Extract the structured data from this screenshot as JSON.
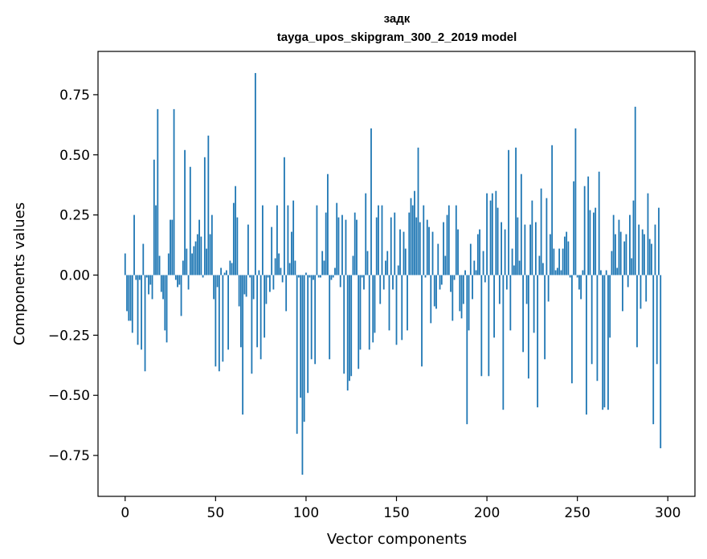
{
  "chart_data": {
    "type": "bar",
    "title": "задк",
    "subtitle": "tayga_upos_skipgram_300_2_2019 model",
    "xlabel": "Vector components",
    "ylabel": "Components values",
    "xlim": [
      -15,
      315
    ],
    "ylim": [
      -0.92,
      0.93
    ],
    "xticks": [
      0,
      50,
      100,
      150,
      200,
      250,
      300
    ],
    "xtick_labels": [
      "0",
      "50",
      "100",
      "150",
      "200",
      "250",
      "300"
    ],
    "yticks": [
      -0.75,
      -0.5,
      -0.25,
      0.0,
      0.25,
      0.5,
      0.75
    ],
    "ytick_labels": [
      "−0.75",
      "−0.50",
      "−0.25",
      "0.00",
      "0.25",
      "0.50",
      "0.75"
    ],
    "bar_color": "#1f77b4",
    "grid": false,
    "x_start": 0,
    "values": [
      0.09,
      -0.15,
      -0.19,
      -0.19,
      -0.24,
      0.25,
      -0.02,
      -0.29,
      -0.02,
      -0.31,
      0.13,
      -0.4,
      -0.01,
      -0.08,
      -0.04,
      -0.1,
      0.48,
      0.29,
      0.69,
      0.08,
      -0.07,
      -0.1,
      -0.23,
      -0.28,
      0.09,
      0.23,
      0.23,
      0.69,
      -0.02,
      -0.05,
      -0.04,
      -0.17,
      0.06,
      0.52,
      0.11,
      -0.06,
      0.45,
      0.09,
      0.12,
      0.14,
      0.17,
      0.23,
      0.16,
      -0.01,
      0.49,
      0.11,
      0.58,
      0.17,
      0.25,
      -0.1,
      -0.38,
      -0.05,
      -0.4,
      0.03,
      -0.36,
      0.01,
      0.02,
      -0.31,
      0.06,
      0.05,
      0.3,
      0.37,
      0.24,
      -0.13,
      -0.3,
      -0.58,
      -0.08,
      -0.09,
      0.21,
      -0.01,
      -0.41,
      -0.1,
      0.84,
      -0.3,
      0.02,
      -0.35,
      0.29,
      -0.26,
      -0.12,
      -0.01,
      -0.07,
      0.2,
      -0.06,
      0.07,
      0.29,
      0.09,
      0.03,
      -0.03,
      0.49,
      -0.15,
      0.29,
      0.05,
      0.18,
      0.31,
      0.06,
      -0.66,
      -0.01,
      -0.51,
      -0.83,
      -0.61,
      0.01,
      -0.49,
      -0.01,
      -0.35,
      -0.02,
      -0.37,
      0.29,
      -0.01,
      -0.01,
      0.1,
      0.06,
      0.26,
      0.42,
      -0.35,
      -0.02,
      -0.01,
      0.03,
      0.3,
      0.24,
      -0.05,
      0.25,
      -0.41,
      0.23,
      -0.48,
      -0.44,
      -0.42,
      0.08,
      0.26,
      0.23,
      -0.39,
      -0.31,
      -0.01,
      -0.06,
      0.34,
      0.1,
      -0.31,
      0.61,
      -0.28,
      -0.24,
      0.24,
      0.29,
      -0.12,
      0.29,
      -0.06,
      0.06,
      0.1,
      -0.23,
      0.24,
      -0.06,
      0.26,
      -0.29,
      0.04,
      0.19,
      -0.27,
      0.18,
      0.11,
      -0.23,
      0.26,
      0.32,
      0.29,
      0.35,
      0.24,
      0.53,
      0.22,
      -0.38,
      0.29,
      -0.01,
      0.23,
      0.2,
      -0.2,
      0.18,
      -0.13,
      -0.14,
      0.13,
      -0.06,
      -0.04,
      0.22,
      0.08,
      0.25,
      0.29,
      -0.07,
      -0.19,
      -0.02,
      0.29,
      0.19,
      -0.15,
      -0.18,
      -0.12,
      0.02,
      -0.62,
      -0.23,
      0.13,
      -0.1,
      0.06,
      0.02,
      0.17,
      0.19,
      -0.42,
      0.1,
      -0.03,
      0.34,
      -0.42,
      0.31,
      0.34,
      -0.26,
      0.35,
      0.28,
      -0.12,
      0.22,
      -0.56,
      0.19,
      -0.06,
      0.52,
      -0.23,
      0.11,
      0.04,
      0.53,
      0.24,
      0.06,
      0.42,
      -0.32,
      0.21,
      -0.12,
      -0.43,
      0.21,
      0.31,
      -0.24,
      0.22,
      -0.55,
      0.08,
      0.36,
      0.05,
      -0.35,
      0.32,
      -0.11,
      0.17,
      0.54,
      0.11,
      0.02,
      0.03,
      0.11,
      0.02,
      0.11,
      0.16,
      0.18,
      0.14,
      -0.01,
      -0.45,
      0.39,
      0.61,
      -0.01,
      -0.06,
      -0.1,
      0.02,
      0.37,
      -0.58,
      0.41,
      0.27,
      -0.37,
      0.26,
      0.28,
      -0.44,
      0.43,
      0.02,
      -0.56,
      -0.55,
      0.02,
      -0.56,
      -0.26,
      0.1,
      0.25,
      0.17,
      0.03,
      0.23,
      0.18,
      -0.15,
      0.14,
      0.17,
      -0.05,
      0.25,
      0.07,
      0.31,
      0.7,
      -0.3,
      0.21,
      -0.14,
      0.19,
      0.17,
      -0.11,
      0.34,
      0.15,
      0.13,
      -0.62,
      0.21,
      -0.37,
      0.28,
      -0.72
    ]
  }
}
